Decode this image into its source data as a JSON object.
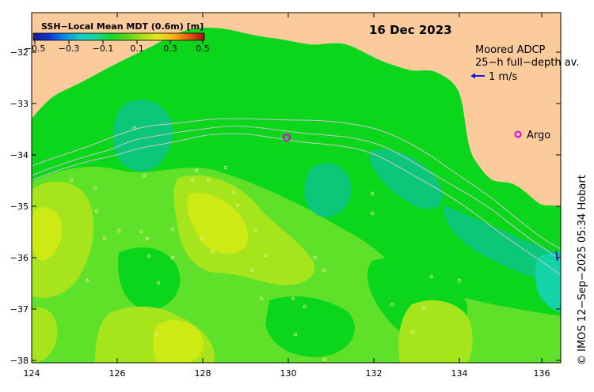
{
  "map": {
    "date": "16 Dec 2023",
    "colorbar": {
      "title": "SSH−Local Mean MDT (0.6m) [m]",
      "ticks": [
        "−0.5",
        "−0.3",
        "−0.1",
        "0.1",
        "0.3",
        "0.5"
      ],
      "colors": [
        "#1b1b8f",
        "#0b34d6",
        "#0a8ae6",
        "#18c9c4",
        "#19d49a",
        "#10d830",
        "#5ad21e",
        "#a6e01a",
        "#e5e51a",
        "#f7b21a",
        "#e85a12",
        "#a01010"
      ]
    },
    "legend": {
      "adcp_title": "Moored ADCP",
      "adcp_subtitle": "25−h full−depth av.",
      "adcp_scale": "1 m/s",
      "argo_label": "Argo"
    },
    "credit": "© IMOS 12−Sep−2025 05:34 Hobart",
    "lat_labels": [
      "−32",
      "−33",
      "−34",
      "−35",
      "−36",
      "−37",
      "−38"
    ],
    "lon_labels": [
      "124",
      "126",
      "128",
      "130",
      "132",
      "134",
      "136"
    ],
    "colors": {
      "land": "#fbcb9b",
      "ocean_base": "#0bd61c",
      "bright_green": "#5fe12a",
      "lime": "#a6e51c",
      "yellow_lime": "#cdea14",
      "teal": "#0cc67a",
      "cyan": "#12d4a6",
      "argo": "#e000e0",
      "adcp": "#1818e0",
      "contour": "#c8c8c8"
    }
  }
}
